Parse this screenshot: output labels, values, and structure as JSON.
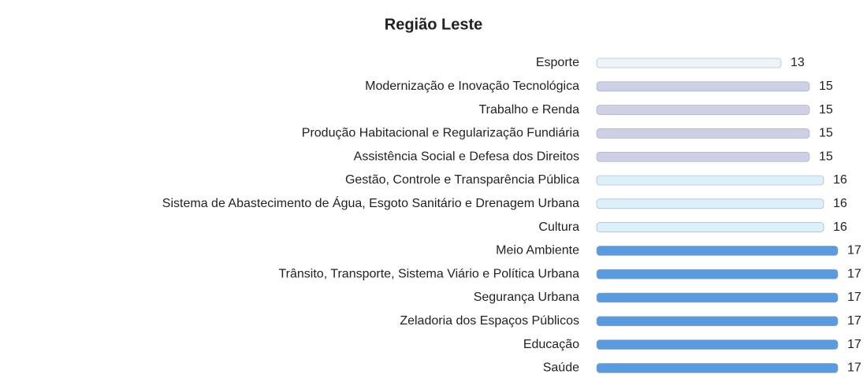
{
  "chart_data": {
    "type": "hbar",
    "title": "Região Leste",
    "categories": [
      "Esporte",
      "Modernização e Inovação Tecnológica",
      "Trabalho e Renda",
      "Produção Habitacional e Regularização Fundiária",
      "Assistência Social e Defesa dos Direitos",
      "Gestão, Controle e Transparência Pública",
      "Sistema de Abastecimento de Água, Esgoto Sanitário e Drenagem Urbana",
      "Cultura",
      "Meio Ambiente",
      "Trânsito, Transporte, Sistema Viário e Política Urbana",
      "Segurança Urbana",
      "Zeladoria dos Espaços Públicos",
      "Educação",
      "Saúde"
    ],
    "values": [
      13,
      15,
      15,
      15,
      15,
      16,
      16,
      16,
      17,
      17,
      17,
      17,
      17,
      17
    ],
    "colors": [
      "#eef3fa",
      "#cfcfe6",
      "#cfcfe6",
      "#cfcfe6",
      "#cfcfe6",
      "#dcf0fa",
      "#dcf0fa",
      "#dcf0fa",
      "#5a9be0",
      "#5a9be0",
      "#5a9be0",
      "#5a9be0",
      "#5a9be0",
      "#5a9be0"
    ],
    "xlim": [
      0,
      17
    ]
  }
}
